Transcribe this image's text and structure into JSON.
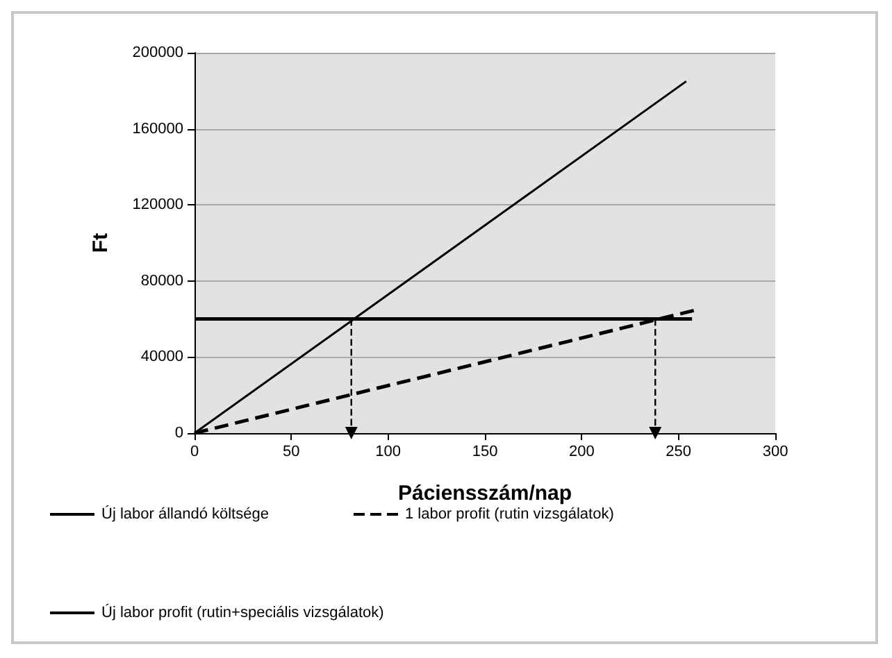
{
  "chart_data": {
    "type": "line",
    "xlabel": "Páciensszám/nap",
    "ylabel": "Ft",
    "xlim": [
      0,
      300
    ],
    "xticks": [
      0,
      50,
      100,
      150,
      200,
      250,
      300
    ],
    "ylim": [
      0,
      200000
    ],
    "yticks": [
      0,
      40000,
      80000,
      120000,
      160000,
      200000
    ],
    "grid": "y",
    "legend": "bottom",
    "marker": "none",
    "series": [
      {
        "name": "Új labor állandó költsége",
        "color": "#000000",
        "x": [
          0,
          257
        ],
        "values": [
          60000,
          60000
        ],
        "line_style": "solid"
      },
      {
        "name": "1 labor profit (rutin vizsgálatok)",
        "color": "#000000",
        "x": [
          0,
          260
        ],
        "values": [
          0,
          65000
        ],
        "line_style": "dashed"
      },
      {
        "name": "Új labor profit (rutin+speciális vizsgálatok)",
        "color": "#000000",
        "x": [
          0,
          254
        ],
        "values": [
          0,
          185000
        ],
        "line_style": "solid"
      },
      {
        "color": "#000000",
        "x": [
          81,
          81
        ],
        "values": [
          60000,
          0
        ],
        "line_style": "dashed",
        "marker": "triangle"
      },
      {
        "color": "#000000",
        "x": [
          238,
          238
        ],
        "values": [
          60000,
          0
        ],
        "line_style": "dashed",
        "marker": "triangle"
      }
    ]
  }
}
